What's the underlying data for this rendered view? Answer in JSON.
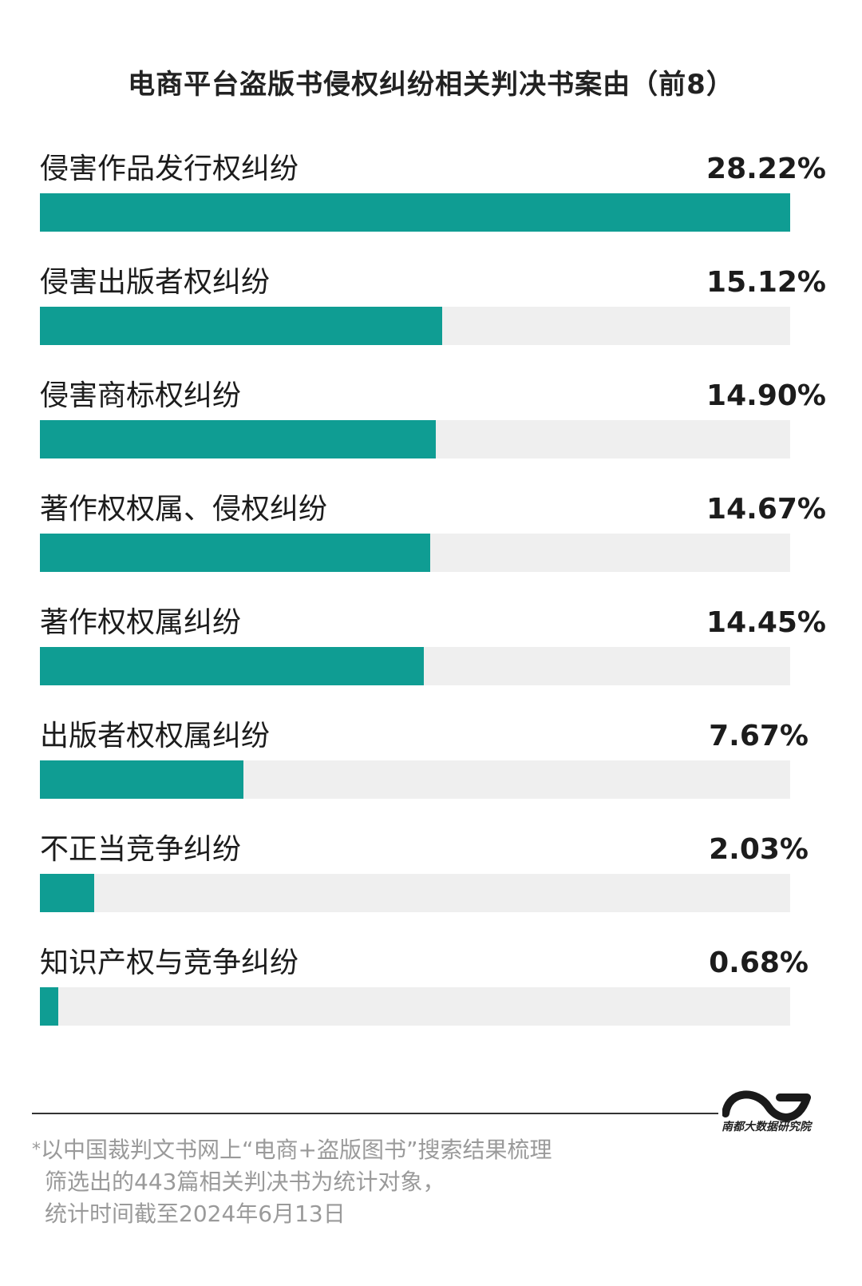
{
  "title": "电商平台盗版书侵权纠纷相关判决书案由（前8）",
  "chart_data": {
    "type": "bar",
    "title": "电商平台盗版书侵权纠纷相关判决书案由（前8）",
    "categories": [
      "侵害作品发行权纠纷",
      "侵害出版者权纠纷",
      "侵害商标权纠纷",
      "著作权权属、侵权纠纷",
      "著作权权属纠纷",
      "出版者权权属纠纷",
      "不正当竞争纠纷",
      "知识产权与竞争纠纷"
    ],
    "values": [
      28.22,
      15.12,
      14.9,
      14.67,
      14.45,
      7.67,
      2.03,
      0.68
    ],
    "value_labels": [
      "28.22%",
      "15.12%",
      "14.90%",
      "14.67%",
      "14.45%",
      "7.67%",
      "2.03%",
      "0.68%"
    ],
    "unit": "%",
    "ylim": [
      0,
      28.22
    ],
    "orientation": "horizontal",
    "colors": {
      "bar": "#0f9d93",
      "track": "#efefef"
    }
  },
  "logo": {
    "text": "南都大数据研究院",
    "icon": "ndd-wave-logo-icon"
  },
  "note": {
    "star": "*",
    "lines": [
      "以中国裁判文书网上“电商+盗版图书”搜索结果梳理",
      "筛选出的443篇相关判决书为统计对象，",
      "统计时间截至2024年6月13日"
    ]
  }
}
